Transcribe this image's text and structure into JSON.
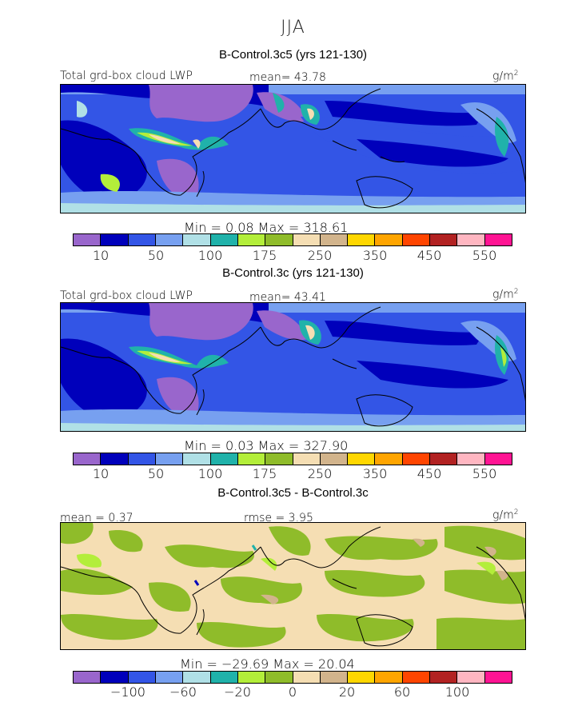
{
  "season": "JJA",
  "panels": [
    {
      "title": "B-Control.3c5 (yrs 121-130)",
      "left_label": "Total grd-box cloud LWP",
      "center_label": "mean=  43.78",
      "units": "g/m",
      "units_sup": "2",
      "stats": "Min =    0.08  Max =  318.61",
      "ticks": [
        "10",
        "50",
        "100",
        "175",
        "250",
        "350",
        "450",
        "550"
      ]
    },
    {
      "title": "B-Control.3c (yrs 121-130)",
      "left_label": "Total grd-box cloud LWP",
      "center_label": "mean=  43.41",
      "units": "g/m",
      "units_sup": "2",
      "stats": "Min =    0.03  Max =  327.90",
      "ticks": [
        "10",
        "50",
        "100",
        "175",
        "250",
        "350",
        "450",
        "550"
      ]
    },
    {
      "title": "B-Control.3c5 - B-Control.3c",
      "left_label": "mean =   0.37",
      "center_label": "rmse =   3.95",
      "units": "g/m",
      "units_sup": "2",
      "stats": "Min = −29.69  Max =  20.04",
      "ticks": [
        "−100",
        "−60",
        "−20",
        "0",
        "20",
        "60",
        "100"
      ]
    }
  ],
  "palette": [
    "#9966cc",
    "#0000bb",
    "#3355e6",
    "#77a0f0",
    "#b0e0e6",
    "#20b2aa",
    "#b3ee3a",
    "#8fbc2a",
    "#f5deb3",
    "#d2b48c",
    "#ffd700",
    "#ffa500",
    "#ff4500",
    "#b22222",
    "#ffb6c1",
    "#ff1493"
  ]
}
